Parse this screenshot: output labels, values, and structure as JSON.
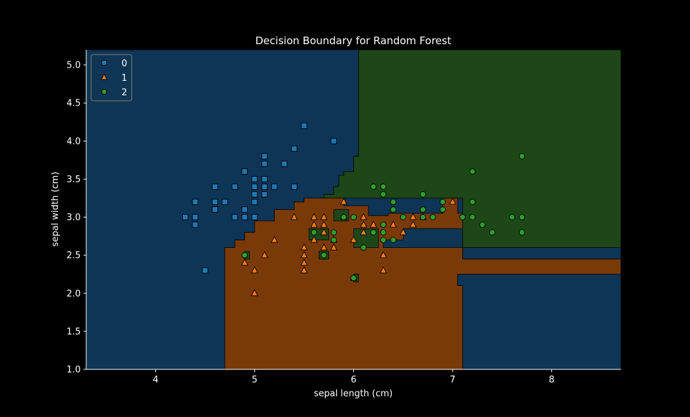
{
  "chart_data": {
    "type": "scatter",
    "title": "Decision Boundary for Random Forest",
    "xlabel": "sepal length (cm)",
    "ylabel": "sepal width (cm)",
    "xlim": [
      3.3,
      8.7
    ],
    "ylim": [
      1.0,
      5.2
    ],
    "x_ticks": [
      4,
      5,
      6,
      7,
      8
    ],
    "y_ticks": [
      1.0,
      1.5,
      2.0,
      2.5,
      3.0,
      3.5,
      4.0,
      4.5,
      5.0
    ],
    "x_tick_labels": [
      "4",
      "5",
      "6",
      "7",
      "8"
    ],
    "y_tick_labels": [
      "1.0",
      "1.5",
      "2.0",
      "2.5",
      "3.0",
      "3.5",
      "4.0",
      "4.5",
      "5.0"
    ],
    "grid": false,
    "legend_position": "upper-left",
    "background_color": "#000000",
    "region_colors": {
      "0": "#0e3555",
      "1": "#7a3a08",
      "2": "#1e4718"
    },
    "regions": [
      {
        "class": "0",
        "polygon": [
          [
            3.3,
            1.0
          ],
          [
            4.7,
            1.0
          ],
          [
            4.7,
            2.6
          ],
          [
            4.8,
            2.6
          ],
          [
            4.8,
            2.7
          ],
          [
            4.9,
            2.7
          ],
          [
            4.9,
            2.8
          ],
          [
            5.0,
            2.8
          ],
          [
            5.0,
            2.95
          ],
          [
            5.2,
            2.95
          ],
          [
            5.2,
            3.1
          ],
          [
            5.4,
            3.1
          ],
          [
            5.4,
            3.2
          ],
          [
            5.5,
            3.2
          ],
          [
            5.5,
            3.25
          ],
          [
            5.7,
            3.25
          ],
          [
            5.7,
            3.3
          ],
          [
            5.8,
            3.3
          ],
          [
            5.8,
            3.4
          ],
          [
            5.85,
            3.4
          ],
          [
            5.85,
            3.55
          ],
          [
            5.9,
            3.55
          ],
          [
            5.9,
            3.6
          ],
          [
            6.0,
            3.6
          ],
          [
            6.0,
            3.8
          ],
          [
            6.05,
            3.8
          ],
          [
            6.05,
            5.2
          ],
          [
            3.3,
            5.2
          ]
        ]
      },
      {
        "class": "2",
        "polygon": [
          [
            6.05,
            5.2
          ],
          [
            6.05,
            3.8
          ],
          [
            6.0,
            3.8
          ],
          [
            6.0,
            3.6
          ],
          [
            5.9,
            3.6
          ],
          [
            5.9,
            3.55
          ],
          [
            5.85,
            3.55
          ],
          [
            5.85,
            3.4
          ],
          [
            5.8,
            3.4
          ],
          [
            5.8,
            3.3
          ],
          [
            5.7,
            3.3
          ],
          [
            5.7,
            3.25
          ],
          [
            7.1,
            3.25
          ],
          [
            7.1,
            2.6
          ],
          [
            8.7,
            2.6
          ],
          [
            8.7,
            5.2
          ]
        ]
      },
      {
        "class": "1",
        "polygon": [
          [
            4.7,
            1.0
          ],
          [
            4.7,
            2.6
          ],
          [
            4.8,
            2.6
          ],
          [
            4.8,
            2.7
          ],
          [
            4.9,
            2.7
          ],
          [
            4.9,
            2.8
          ],
          [
            5.0,
            2.8
          ],
          [
            5.0,
            2.95
          ],
          [
            5.2,
            2.95
          ],
          [
            5.2,
            3.1
          ],
          [
            5.4,
            3.1
          ],
          [
            5.4,
            3.2
          ],
          [
            5.5,
            3.2
          ],
          [
            5.5,
            3.25
          ],
          [
            5.9,
            3.25
          ],
          [
            5.9,
            3.15
          ],
          [
            6.15,
            3.15
          ],
          [
            6.15,
            3.02
          ],
          [
            6.35,
            3.02
          ],
          [
            6.35,
            3.05
          ],
          [
            6.9,
            3.05
          ],
          [
            6.9,
            3.25
          ],
          [
            7.05,
            3.25
          ],
          [
            7.05,
            3.05
          ],
          [
            7.1,
            3.05
          ],
          [
            7.1,
            2.85
          ],
          [
            6.5,
            2.85
          ],
          [
            6.5,
            2.7
          ],
          [
            6.3,
            2.7
          ],
          [
            6.3,
            2.6
          ],
          [
            7.1,
            2.6
          ],
          [
            7.1,
            2.45
          ],
          [
            8.7,
            2.45
          ],
          [
            8.7,
            2.25
          ],
          [
            7.05,
            2.25
          ],
          [
            7.05,
            2.1
          ],
          [
            7.1,
            2.1
          ],
          [
            7.1,
            1.0
          ]
        ]
      },
      {
        "class": "2",
        "polygon": [
          [
            6.0,
            2.85
          ],
          [
            6.25,
            2.85
          ],
          [
            6.25,
            2.6
          ],
          [
            6.0,
            2.6
          ]
        ]
      },
      {
        "class": "2",
        "polygon": [
          [
            5.55,
            2.85
          ],
          [
            5.75,
            2.85
          ],
          [
            5.75,
            2.7
          ],
          [
            5.55,
            2.7
          ]
        ]
      },
      {
        "class": "2",
        "polygon": [
          [
            5.65,
            2.55
          ],
          [
            5.75,
            2.55
          ],
          [
            5.75,
            2.45
          ],
          [
            5.65,
            2.45
          ]
        ]
      },
      {
        "class": "2",
        "polygon": [
          [
            4.9,
            2.55
          ],
          [
            4.95,
            2.55
          ],
          [
            4.95,
            2.45
          ],
          [
            4.9,
            2.45
          ]
        ]
      },
      {
        "class": "2",
        "polygon": [
          [
            5.8,
            3.1
          ],
          [
            5.95,
            3.1
          ],
          [
            5.95,
            2.95
          ],
          [
            5.8,
            2.95
          ]
        ]
      },
      {
        "class": "2",
        "polygon": [
          [
            6.0,
            2.25
          ],
          [
            6.05,
            2.25
          ],
          [
            6.05,
            2.15
          ],
          [
            6.0,
            2.15
          ]
        ]
      }
    ],
    "series": [
      {
        "name": "0",
        "marker": "square",
        "color": "#1f77b4",
        "points": [
          [
            4.3,
            3.0
          ],
          [
            4.4,
            2.9
          ],
          [
            4.4,
            3.0
          ],
          [
            4.4,
            3.2
          ],
          [
            4.5,
            2.3
          ],
          [
            4.6,
            3.1
          ],
          [
            4.6,
            3.2
          ],
          [
            4.6,
            3.4
          ],
          [
            4.7,
            3.2
          ],
          [
            4.8,
            3.0
          ],
          [
            4.8,
            3.4
          ],
          [
            4.9,
            3.0
          ],
          [
            4.9,
            3.1
          ],
          [
            4.9,
            3.6
          ],
          [
            5.0,
            3.0
          ],
          [
            5.0,
            3.2
          ],
          [
            5.0,
            3.3
          ],
          [
            5.0,
            3.4
          ],
          [
            5.0,
            3.5
          ],
          [
            5.1,
            3.3
          ],
          [
            5.1,
            3.4
          ],
          [
            5.1,
            3.5
          ],
          [
            5.1,
            3.7
          ],
          [
            5.1,
            3.8
          ],
          [
            5.2,
            3.4
          ],
          [
            5.3,
            3.7
          ],
          [
            5.4,
            3.4
          ],
          [
            5.4,
            3.9
          ],
          [
            5.5,
            4.2
          ],
          [
            5.8,
            4.0
          ]
        ]
      },
      {
        "name": "1",
        "marker": "triangle",
        "color": "#ff7f0e",
        "points": [
          [
            4.9,
            2.4
          ],
          [
            5.0,
            2.0
          ],
          [
            5.0,
            2.3
          ],
          [
            5.1,
            2.5
          ],
          [
            5.2,
            2.7
          ],
          [
            5.4,
            3.0
          ],
          [
            5.5,
            2.3
          ],
          [
            5.5,
            2.4
          ],
          [
            5.5,
            2.5
          ],
          [
            5.5,
            2.6
          ],
          [
            5.6,
            2.7
          ],
          [
            5.6,
            2.9
          ],
          [
            5.6,
            3.0
          ],
          [
            5.7,
            2.6
          ],
          [
            5.7,
            2.8
          ],
          [
            5.7,
            2.9
          ],
          [
            5.7,
            3.0
          ],
          [
            5.8,
            2.6
          ],
          [
            5.8,
            2.7
          ],
          [
            5.9,
            3.2
          ],
          [
            5.9,
            3.0
          ],
          [
            6.0,
            2.7
          ],
          [
            6.0,
            2.2
          ],
          [
            6.1,
            2.8
          ],
          [
            6.1,
            2.9
          ],
          [
            6.1,
            3.0
          ],
          [
            6.2,
            2.9
          ],
          [
            6.3,
            2.3
          ],
          [
            6.3,
            2.5
          ],
          [
            6.4,
            2.9
          ],
          [
            6.5,
            2.8
          ],
          [
            6.6,
            2.9
          ],
          [
            6.6,
            3.0
          ],
          [
            6.7,
            3.0
          ],
          [
            7.0,
            3.2
          ]
        ]
      },
      {
        "name": "2",
        "marker": "circle",
        "color": "#2ca02c",
        "points": [
          [
            4.9,
            2.5
          ],
          [
            5.6,
            2.8
          ],
          [
            5.7,
            2.5
          ],
          [
            5.8,
            2.7
          ],
          [
            5.8,
            2.8
          ],
          [
            5.9,
            3.0
          ],
          [
            6.0,
            2.2
          ],
          [
            6.0,
            3.0
          ],
          [
            6.1,
            2.6
          ],
          [
            6.2,
            2.8
          ],
          [
            6.2,
            3.4
          ],
          [
            6.3,
            2.7
          ],
          [
            6.3,
            2.8
          ],
          [
            6.3,
            2.9
          ],
          [
            6.3,
            3.3
          ],
          [
            6.3,
            3.4
          ],
          [
            6.4,
            2.7
          ],
          [
            6.4,
            3.1
          ],
          [
            6.4,
            3.2
          ],
          [
            6.5,
            3.0
          ],
          [
            6.7,
            3.0
          ],
          [
            6.7,
            3.1
          ],
          [
            6.7,
            3.3
          ],
          [
            6.8,
            3.0
          ],
          [
            6.9,
            3.1
          ],
          [
            6.9,
            3.2
          ],
          [
            7.1,
            3.0
          ],
          [
            7.2,
            3.0
          ],
          [
            7.2,
            3.2
          ],
          [
            7.2,
            3.6
          ],
          [
            7.3,
            2.9
          ],
          [
            7.4,
            2.8
          ],
          [
            7.6,
            3.0
          ],
          [
            7.7,
            2.8
          ],
          [
            7.7,
            3.0
          ],
          [
            7.7,
            3.8
          ]
        ]
      }
    ],
    "legend": [
      {
        "label": "0",
        "marker": "square",
        "color": "#1f77b4"
      },
      {
        "label": "1",
        "marker": "triangle",
        "color": "#ff7f0e"
      },
      {
        "label": "2",
        "marker": "circle",
        "color": "#2ca02c"
      }
    ]
  }
}
